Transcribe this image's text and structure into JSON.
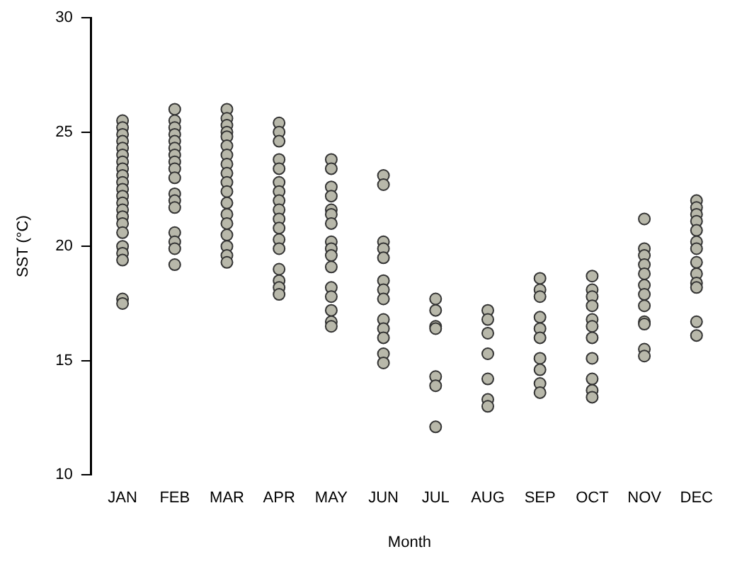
{
  "chart_data": {
    "type": "scatter",
    "xlabel": "Month",
    "ylabel": "SST (°C)",
    "categories": [
      "JAN",
      "FEB",
      "MAR",
      "APR",
      "MAY",
      "JUN",
      "JUL",
      "AUG",
      "SEP",
      "OCT",
      "NOV",
      "DEC"
    ],
    "ylim": [
      10,
      30
    ],
    "yticks": [
      10,
      15,
      20,
      25,
      30
    ],
    "grid": false,
    "legend": false,
    "marker": "circle",
    "series": [
      {
        "color": "#b8b8aa",
        "x": [
          "JAN",
          "JAN",
          "JAN",
          "JAN",
          "JAN",
          "JAN",
          "JAN",
          "JAN",
          "JAN",
          "JAN",
          "JAN",
          "JAN",
          "JAN",
          "JAN",
          "JAN",
          "JAN",
          "JAN",
          "JAN",
          "JAN",
          "JAN",
          "JAN",
          "JAN",
          "FEB",
          "FEB",
          "FEB",
          "FEB",
          "FEB",
          "FEB",
          "FEB",
          "FEB",
          "FEB",
          "FEB",
          "FEB",
          "FEB",
          "FEB",
          "FEB",
          "FEB",
          "FEB",
          "FEB",
          "MAR",
          "MAR",
          "MAR",
          "MAR",
          "MAR",
          "MAR",
          "MAR",
          "MAR",
          "MAR",
          "MAR",
          "MAR",
          "MAR",
          "MAR",
          "MAR",
          "MAR",
          "MAR",
          "MAR",
          "MAR",
          "APR",
          "APR",
          "APR",
          "APR",
          "APR",
          "APR",
          "APR",
          "APR",
          "APR",
          "APR",
          "APR",
          "APR",
          "APR",
          "APR",
          "APR",
          "APR",
          "APR",
          "MAY",
          "MAY",
          "MAY",
          "MAY",
          "MAY",
          "MAY",
          "MAY",
          "MAY",
          "MAY",
          "MAY",
          "MAY",
          "MAY",
          "MAY",
          "MAY",
          "MAY",
          "MAY",
          "JUN",
          "JUN",
          "JUN",
          "JUN",
          "JUN",
          "JUN",
          "JUN",
          "JUN",
          "JUN",
          "JUN",
          "JUN",
          "JUN",
          "JUN",
          "JUL",
          "JUL",
          "JUL",
          "JUL",
          "JUL",
          "JUL",
          "JUL",
          "AUG",
          "AUG",
          "AUG",
          "AUG",
          "AUG",
          "AUG",
          "AUG",
          "SEP",
          "SEP",
          "SEP",
          "SEP",
          "SEP",
          "SEP",
          "SEP",
          "SEP",
          "SEP",
          "SEP",
          "OCT",
          "OCT",
          "OCT",
          "OCT",
          "OCT",
          "OCT",
          "OCT",
          "OCT",
          "OCT",
          "OCT",
          "OCT",
          "NOV",
          "NOV",
          "NOV",
          "NOV",
          "NOV",
          "NOV",
          "NOV",
          "NOV",
          "NOV",
          "NOV",
          "NOV",
          "NOV",
          "DEC",
          "DEC",
          "DEC",
          "DEC",
          "DEC",
          "DEC",
          "DEC",
          "DEC",
          "DEC",
          "DEC",
          "DEC",
          "DEC",
          "DEC"
        ],
        "values": [
          25.5,
          25.2,
          24.9,
          24.6,
          24.3,
          24.0,
          23.7,
          23.4,
          23.1,
          22.8,
          22.5,
          22.2,
          21.9,
          21.6,
          21.3,
          21.0,
          20.6,
          20.0,
          19.7,
          19.4,
          17.7,
          17.5,
          26.0,
          25.5,
          25.2,
          24.9,
          24.6,
          24.3,
          24.0,
          23.7,
          23.4,
          23.0,
          22.3,
          22.0,
          21.7,
          20.6,
          20.2,
          19.9,
          19.2,
          26.0,
          25.6,
          25.3,
          25.0,
          24.8,
          24.4,
          24.0,
          23.6,
          23.2,
          22.8,
          22.4,
          21.9,
          21.4,
          21.0,
          20.5,
          20.0,
          19.6,
          19.3,
          25.4,
          25.0,
          24.6,
          23.8,
          23.4,
          22.8,
          22.4,
          22.0,
          21.6,
          21.2,
          20.8,
          20.3,
          19.9,
          19.0,
          18.5,
          18.2,
          17.9,
          23.8,
          23.4,
          22.6,
          22.2,
          21.6,
          21.4,
          21.0,
          20.2,
          19.9,
          19.6,
          19.1,
          18.2,
          17.8,
          17.2,
          16.7,
          16.5,
          23.1,
          22.7,
          20.2,
          19.9,
          19.5,
          18.5,
          18.1,
          17.7,
          16.8,
          16.4,
          16.0,
          15.3,
          14.9,
          17.7,
          17.2,
          16.5,
          16.4,
          14.3,
          13.9,
          12.1,
          17.2,
          16.8,
          16.2,
          15.3,
          14.2,
          13.3,
          13.0,
          18.6,
          18.1,
          17.8,
          16.9,
          16.4,
          16.0,
          15.1,
          14.6,
          14.0,
          13.6,
          18.7,
          18.1,
          17.8,
          17.4,
          16.8,
          16.5,
          16.0,
          15.1,
          14.2,
          13.7,
          13.4,
          21.2,
          19.9,
          19.6,
          19.2,
          18.8,
          18.3,
          17.9,
          17.4,
          16.7,
          16.6,
          15.5,
          15.2,
          22.0,
          21.7,
          21.4,
          21.1,
          20.7,
          20.2,
          19.9,
          19.3,
          18.8,
          18.4,
          18.2,
          16.7,
          16.1
        ]
      }
    ]
  }
}
